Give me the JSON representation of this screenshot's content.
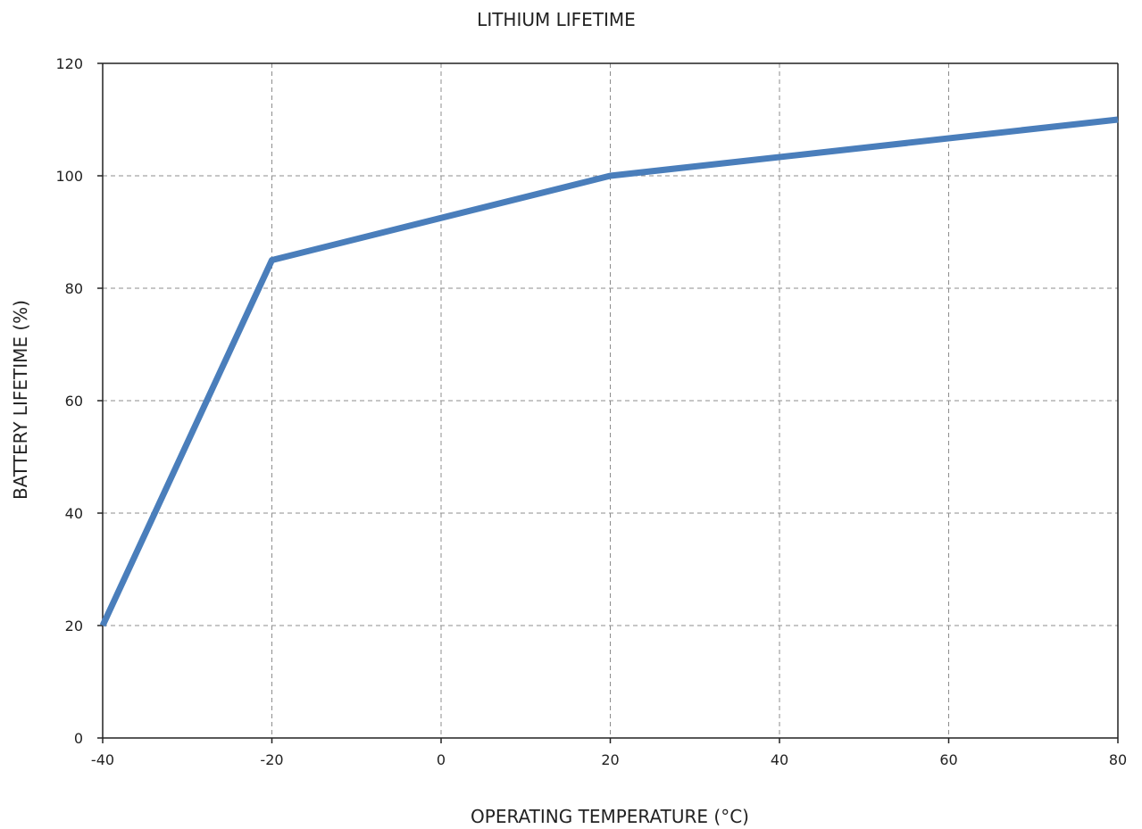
{
  "chart_data": {
    "type": "line",
    "title": "LITHIUM LIFETIME",
    "xlabel": "OPERATING TEMPERATURE (°C)",
    "ylabel": "BATTERY LIFETIME (%)",
    "xlim": [
      -40,
      80
    ],
    "ylim": [
      0,
      120
    ],
    "xticks": [
      -40,
      -20,
      0,
      20,
      40,
      60,
      80
    ],
    "yticks": [
      0,
      20,
      40,
      60,
      80,
      100,
      120
    ],
    "grid": true,
    "series": [
      {
        "color": "#4a7ebb",
        "x": [
          -40,
          -20,
          20,
          80
        ],
        "y": [
          20,
          85,
          100,
          110
        ]
      }
    ]
  }
}
